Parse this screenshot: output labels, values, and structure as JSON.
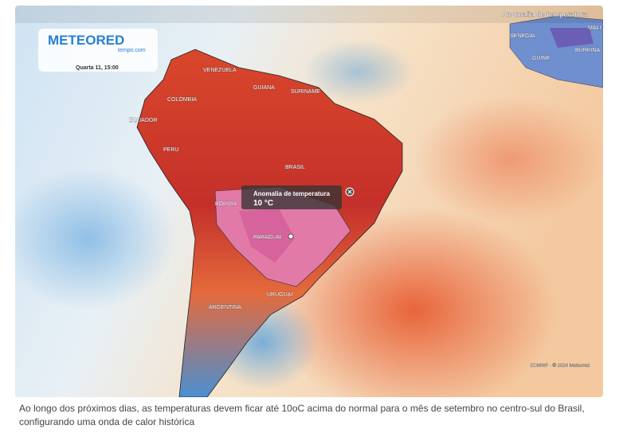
{
  "map": {
    "legend_title": "Anomalia de temperatura",
    "logo": {
      "brand": "METEORED",
      "site": "tempo.com"
    },
    "timestamp": "Quarta 11, 15:00",
    "labels": [
      "VENEZUELA",
      "GUIANA",
      "SURINAME",
      "COLÔMBIA",
      "EQUADOR",
      "PERU",
      "BRASIL",
      "BOLÍVIA",
      "PARAGUAI",
      "URUGUAI",
      "ARGENTINA",
      "SENEGAL",
      "MALI",
      "BURKINA",
      "GUINÉ"
    ],
    "tooltip": {
      "title": "Anomalia de temperatura",
      "value": "10 °C"
    },
    "credit": "ECMWF · © 2024 Meteored"
  },
  "caption": "Ao longo dos próximos dias, as temperaturas devem ficar até 10oC acima do normal para o mês de setembro no centro-sul do Brasil, configurando uma onda de calor histórica"
}
